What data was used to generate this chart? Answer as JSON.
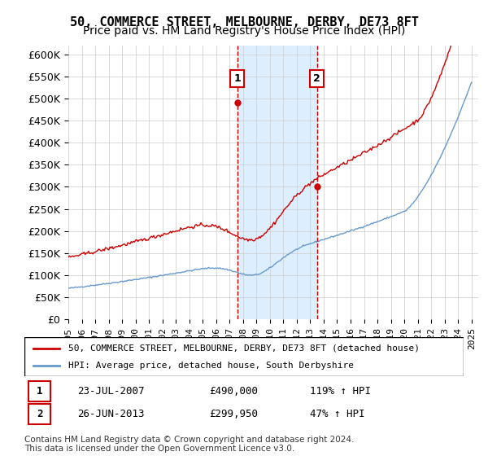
{
  "title": "50, COMMERCE STREET, MELBOURNE, DERBY, DE73 8FT",
  "subtitle": "Price paid vs. HM Land Registry's House Price Index (HPI)",
  "ylim": [
    0,
    620000
  ],
  "yticks": [
    0,
    50000,
    100000,
    150000,
    200000,
    250000,
    300000,
    350000,
    400000,
    450000,
    500000,
    550000,
    600000
  ],
  "sale1_date": "23-JUL-2007",
  "sale1_price": 490000,
  "sale1_label": "1",
  "sale1_hpi_pct": "119% ↑ HPI",
  "sale2_date": "26-JUN-2013",
  "sale2_price": 299950,
  "sale2_label": "2",
  "sale2_hpi_pct": "47% ↑ HPI",
  "legend_line1": "50, COMMERCE STREET, MELBOURNE, DERBY, DE73 8FT (detached house)",
  "legend_line2": "HPI: Average price, detached house, South Derbyshire",
  "footer": "Contains HM Land Registry data © Crown copyright and database right 2024.\nThis data is licensed under the Open Government Licence v3.0.",
  "price_line_color": "#cc0000",
  "hpi_line_color": "#6699cc",
  "shade_color": "#ddeeff",
  "vline_color": "#cc0000",
  "title_fontsize": 11,
  "subtitle_fontsize": 10,
  "tick_fontsize": 9
}
